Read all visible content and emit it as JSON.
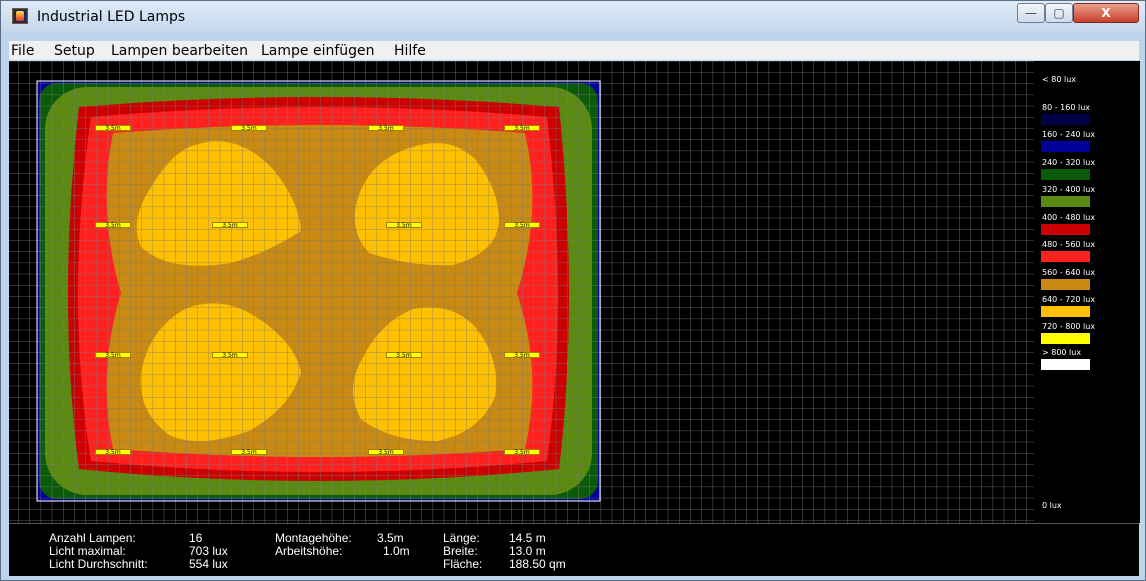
{
  "window": {
    "title": "Industrial LED Lamps",
    "minimize": "—",
    "maximize": "▢",
    "close": "X"
  },
  "menu": {
    "items": [
      "File",
      "Setup",
      "Lampen bearbeiten",
      "Lampe einfügen",
      "Hilfe"
    ]
  },
  "room": {
    "lamp_label": "3.5m",
    "lamp_count": 16
  },
  "legend": {
    "items": [
      {
        "label": "< 80 lux",
        "color": "#000000"
      },
      {
        "label": "80 - 160 lux",
        "color": "#000044"
      },
      {
        "label": "160 - 240 lux",
        "color": "#000099"
      },
      {
        "label": "240 - 320 lux",
        "color": "#0a5a0a"
      },
      {
        "label": "320 - 400 lux",
        "color": "#5a8a12"
      },
      {
        "label": "400 - 480 lux",
        "color": "#cc0000"
      },
      {
        "label": "480 - 560 lux",
        "color": "#ff2020"
      },
      {
        "label": "560 - 640 lux",
        "color": "#c88a12"
      },
      {
        "label": "640 - 720 lux",
        "color": "#ffc000"
      },
      {
        "label": "720 - 800 lux",
        "color": "#ffff00"
      },
      {
        "label": "> 800 lux",
        "color": "#ffffff"
      }
    ],
    "bottom_label": "0 lux"
  },
  "status": {
    "anzahl_label": "Anzahl Lampen:",
    "anzahl_value": "16",
    "max_label": "Licht maximal:",
    "max_value": "703 lux",
    "avg_label": "Licht Durchschnitt:",
    "avg_value": "554 lux",
    "montage_label": "Montagehöhe:",
    "montage_value": "3.5m",
    "arbeit_label": "Arbeitshöhe:",
    "arbeit_value": "1.0m",
    "laenge_label": "Länge:",
    "laenge_value": "14.5 m",
    "breite_label": "Breite:",
    "breite_value": "13.0 m",
    "flaeche_label": "Fläche:",
    "flaeche_value": "188.50 qm"
  }
}
